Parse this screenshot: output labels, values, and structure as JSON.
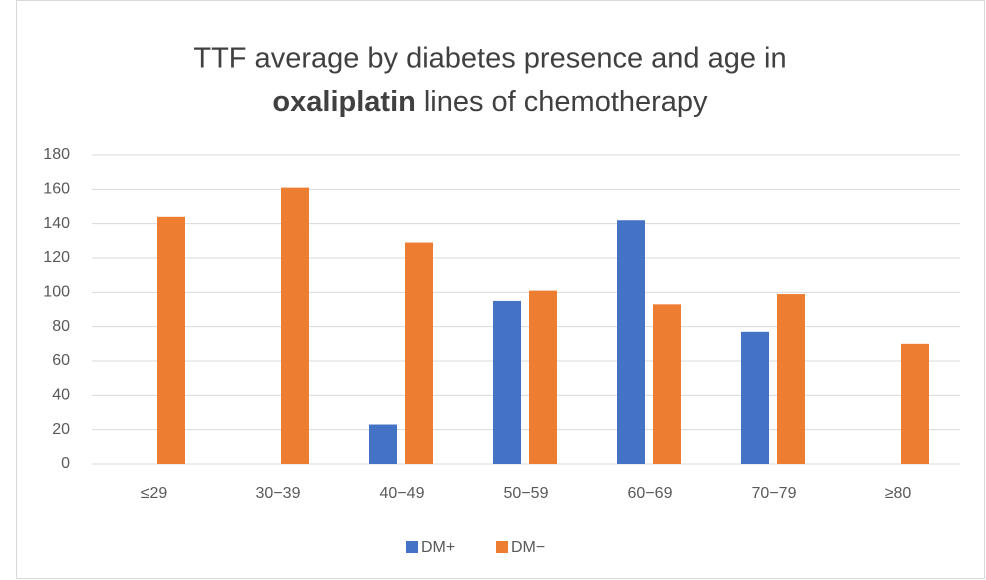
{
  "chart_data": {
    "type": "bar",
    "title": [
      "TTF average by diabetes presence  and age in",
      "oxaliplatin",
      "lines of chemotherapy"
    ],
    "categories": [
      "≤29",
      "30−39",
      "40−49",
      "50−59",
      "60−69",
      "70−79",
      "≥80"
    ],
    "series": [
      {
        "name": "DM+",
        "color": "#4472c4",
        "values": [
          null,
          null,
          23,
          95,
          142,
          77,
          null
        ]
      },
      {
        "name": "DM−",
        "color": "#ed7d31",
        "values": [
          144,
          161,
          129,
          101,
          93,
          99,
          70
        ]
      }
    ],
    "ylim": [
      0,
      180
    ],
    "yticks": [
      0,
      20,
      40,
      60,
      80,
      100,
      120,
      140,
      160,
      180
    ],
    "grid": true,
    "legend": "bottom"
  }
}
